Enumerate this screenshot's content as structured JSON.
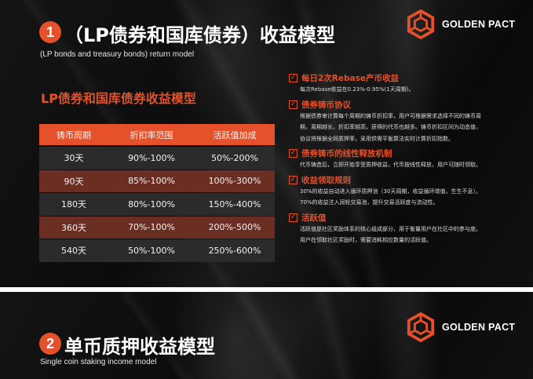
{
  "slide1": {
    "number": "1",
    "title": "（LP债券和国库债券）收益模型",
    "subtitle": "(LP bonds and treasury bonds) return model",
    "brand": "GOLDEN PACT",
    "section_title": "LP债券和国库债券收益模型",
    "table": {
      "headers": [
        "铸币周期",
        "折扣率范围",
        "活跃值加成"
      ],
      "rows": [
        [
          "30天",
          "90%-100%",
          "50%-200%"
        ],
        [
          "90天",
          "85%-100%",
          "100%-300%"
        ],
        [
          "180天",
          "80%-100%",
          "150%-400%"
        ],
        [
          "360天",
          "70%-100%",
          "200%-500%"
        ],
        [
          "540天",
          "50%-100%",
          "250%-600%"
        ]
      ]
    },
    "items": [
      {
        "title": "每日2次Rebase产币收益",
        "lines": [
          "每次Rebase收益在0.23%-0.95%(1天周期)。"
        ]
      },
      {
        "title": "债券铸币协议",
        "lines": [
          "根据债券审计算每个周期的铸币折扣率，用户可根据需求选择不同的铸币周",
          "期，周期越长，折扣率越高，获得的代币也越多。铸币折扣区间为动态值，",
          "协议将根据全网质押率，采用供需平衡算法实时计算折扣指数。"
        ]
      },
      {
        "title": "债券铸币的线性释放机制",
        "lines": [
          "代币铸造后，立即开始享受质押收益，代币按线性释放，用户可随时领取。"
        ]
      },
      {
        "title": "收益领取规则",
        "lines": [
          "30%的收益自动进入循环质押池（30天周期，收益循环增值，生生不息）。",
          "70%的收益注入润轮交易池，提升交易活跃度与流动性。"
        ]
      },
      {
        "title": "活跃值",
        "lines": [
          "活跃值是社区奖励体系的核心组成部分，用于衡量用户在社区中的参与度。",
          "用户在领取社区奖励时，需要消耗相应数量的活跃值。"
        ]
      }
    ]
  },
  "slide2": {
    "number": "2",
    "title": "单币质押收益模型",
    "subtitle": "Single coin staking income model",
    "brand": "GOLDEN PACT"
  },
  "colors": {
    "accent": "#e4512b",
    "row_dark": "#2b2b2b",
    "row_brown": "#6b2e22",
    "background": "#0e0e0e"
  }
}
